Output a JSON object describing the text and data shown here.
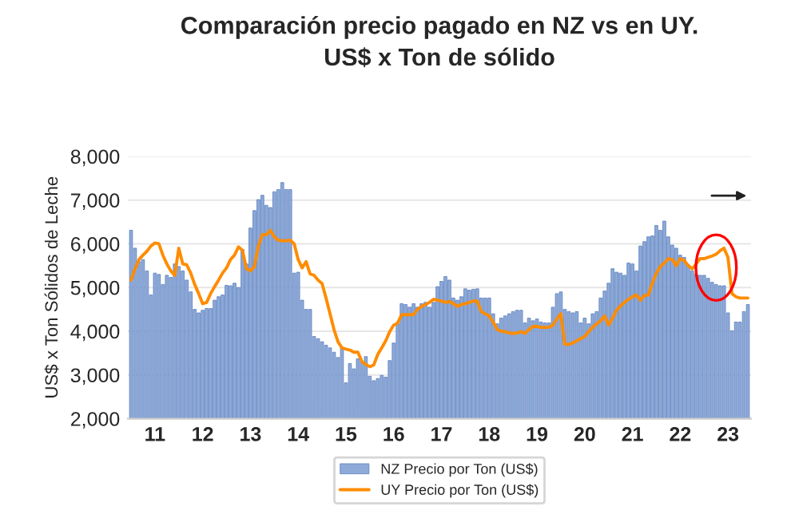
{
  "chart_data": {
    "type": "bar",
    "title": "Comparación precio pagado en NZ vs en UY.\nUS$ x Ton de sólido",
    "ylabel": "US$ x Ton Sólidos de Leche",
    "categories": [
      null,
      null,
      null,
      null,
      null,
      null,
      "11",
      null,
      null,
      null,
      null,
      null,
      null,
      null,
      null,
      null,
      null,
      null,
      "12",
      null,
      null,
      null,
      null,
      null,
      null,
      null,
      null,
      null,
      null,
      null,
      "13",
      null,
      null,
      null,
      null,
      null,
      null,
      null,
      null,
      null,
      null,
      null,
      "14",
      null,
      null,
      null,
      null,
      null,
      null,
      null,
      null,
      null,
      null,
      null,
      "15",
      null,
      null,
      null,
      null,
      null,
      null,
      null,
      null,
      null,
      null,
      null,
      "16",
      null,
      null,
      null,
      null,
      null,
      null,
      null,
      null,
      null,
      null,
      null,
      "17",
      null,
      null,
      null,
      null,
      null,
      null,
      null,
      null,
      null,
      null,
      null,
      "18",
      null,
      null,
      null,
      null,
      null,
      null,
      null,
      null,
      null,
      null,
      null,
      "19",
      null,
      null,
      null,
      null,
      null,
      null,
      null,
      null,
      null,
      null,
      null,
      "20",
      null,
      null,
      null,
      null,
      null,
      null,
      null,
      null,
      null,
      null,
      null,
      "21",
      null,
      null,
      null,
      null,
      null,
      null,
      null,
      null,
      null,
      null,
      null,
      "22",
      null,
      null,
      null,
      null,
      null,
      null,
      null,
      null,
      null,
      null,
      null,
      "23",
      null,
      null,
      null,
      null,
      null
    ],
    "series": [
      {
        "name": "NZ Precio por Ton (US$)",
        "color": "#8eaad8",
        "values": [
          6310,
          5900,
          5590,
          5640,
          5380,
          4830,
          5330,
          5300,
          5070,
          5280,
          5230,
          5540,
          5480,
          5380,
          5170,
          4900,
          4500,
          4420,
          4480,
          4520,
          4520,
          4710,
          4790,
          4830,
          5050,
          5040,
          5100,
          5000,
          5870,
          5540,
          6360,
          6760,
          7010,
          7110,
          6880,
          6830,
          7190,
          7240,
          7400,
          7240,
          7240,
          5330,
          5350,
          4710,
          4500,
          4500,
          3880,
          3830,
          3760,
          3680,
          3620,
          3520,
          3400,
          3620,
          2820,
          3260,
          3140,
          3370,
          3310,
          3420,
          2970,
          2870,
          2920,
          2990,
          2950,
          3330,
          3730,
          4170,
          4630,
          4610,
          4550,
          4630,
          4550,
          4630,
          4660,
          4550,
          4660,
          5020,
          5140,
          5250,
          5170,
          4760,
          4710,
          4790,
          4970,
          4940,
          4960,
          4970,
          4760,
          4760,
          4760,
          4400,
          4170,
          4300,
          4350,
          4400,
          4450,
          4480,
          4480,
          4190,
          4300,
          4240,
          4280,
          4210,
          4190,
          4190,
          4550,
          4860,
          4900,
          4500,
          4450,
          4420,
          4450,
          4190,
          4300,
          4170,
          4400,
          4450,
          4760,
          4920,
          5100,
          5430,
          5350,
          5330,
          5280,
          5560,
          5540,
          5380,
          5950,
          6050,
          6160,
          6180,
          6420,
          6310,
          6520,
          6160,
          5970,
          5900,
          5740,
          5690,
          5520,
          5380,
          5310,
          5280,
          5280,
          5210,
          5120,
          5070,
          5040,
          5040,
          4420,
          4010,
          4210,
          4210,
          4450,
          4610
        ]
      },
      {
        "name": "UY Precio por Ton (US$)",
        "type": "line",
        "color": "#ff8c00",
        "values": [
          5170,
          5430,
          5640,
          5740,
          5830,
          5950,
          6020,
          6000,
          5740,
          5540,
          5380,
          5280,
          5900,
          5540,
          5520,
          5330,
          5070,
          4860,
          4630,
          4660,
          4860,
          5020,
          5170,
          5330,
          5450,
          5640,
          5740,
          5930,
          5850,
          5430,
          5380,
          5480,
          5950,
          6210,
          6210,
          6310,
          6160,
          6080,
          6070,
          6070,
          6080,
          6000,
          5640,
          5450,
          5590,
          5310,
          5280,
          5170,
          5090,
          4760,
          4400,
          4040,
          3760,
          3620,
          3590,
          3570,
          3520,
          3520,
          3310,
          3240,
          3190,
          3230,
          3470,
          3620,
          3780,
          3990,
          4140,
          4190,
          4380,
          4380,
          4380,
          4380,
          4500,
          4570,
          4610,
          4660,
          4730,
          4710,
          4690,
          4660,
          4680,
          4630,
          4570,
          4610,
          4630,
          4660,
          4690,
          4690,
          4450,
          4400,
          4350,
          4210,
          4040,
          4000,
          3990,
          3960,
          3950,
          3960,
          3990,
          3950,
          4040,
          4110,
          4110,
          4090,
          4090,
          4090,
          4140,
          4280,
          4400,
          3700,
          3700,
          3730,
          3780,
          3830,
          3880,
          3990,
          4090,
          4170,
          4240,
          4350,
          4140,
          4300,
          4480,
          4580,
          4660,
          4730,
          4790,
          4830,
          4710,
          4820,
          4830,
          5100,
          5330,
          5480,
          5560,
          5660,
          5640,
          5500,
          5660,
          5620,
          5500,
          5430,
          5540,
          5660,
          5660,
          5690,
          5720,
          5760,
          5840,
          5900,
          5690,
          4860,
          4790,
          4760,
          4760,
          4760
        ]
      }
    ],
    "ylim": [
      2000,
      8000
    ],
    "yticks": [
      {
        "value": 2000,
        "label": "2,000"
      },
      {
        "value": 3000,
        "label": "3,000"
      },
      {
        "value": 4000,
        "label": "4,000"
      },
      {
        "value": 5000,
        "label": "5,000"
      },
      {
        "value": 6000,
        "label": "6,000"
      },
      {
        "value": 7000,
        "label": "7,000"
      },
      {
        "value": 8000,
        "label": "8,000"
      }
    ],
    "grid": "y",
    "legend": "bottom"
  }
}
